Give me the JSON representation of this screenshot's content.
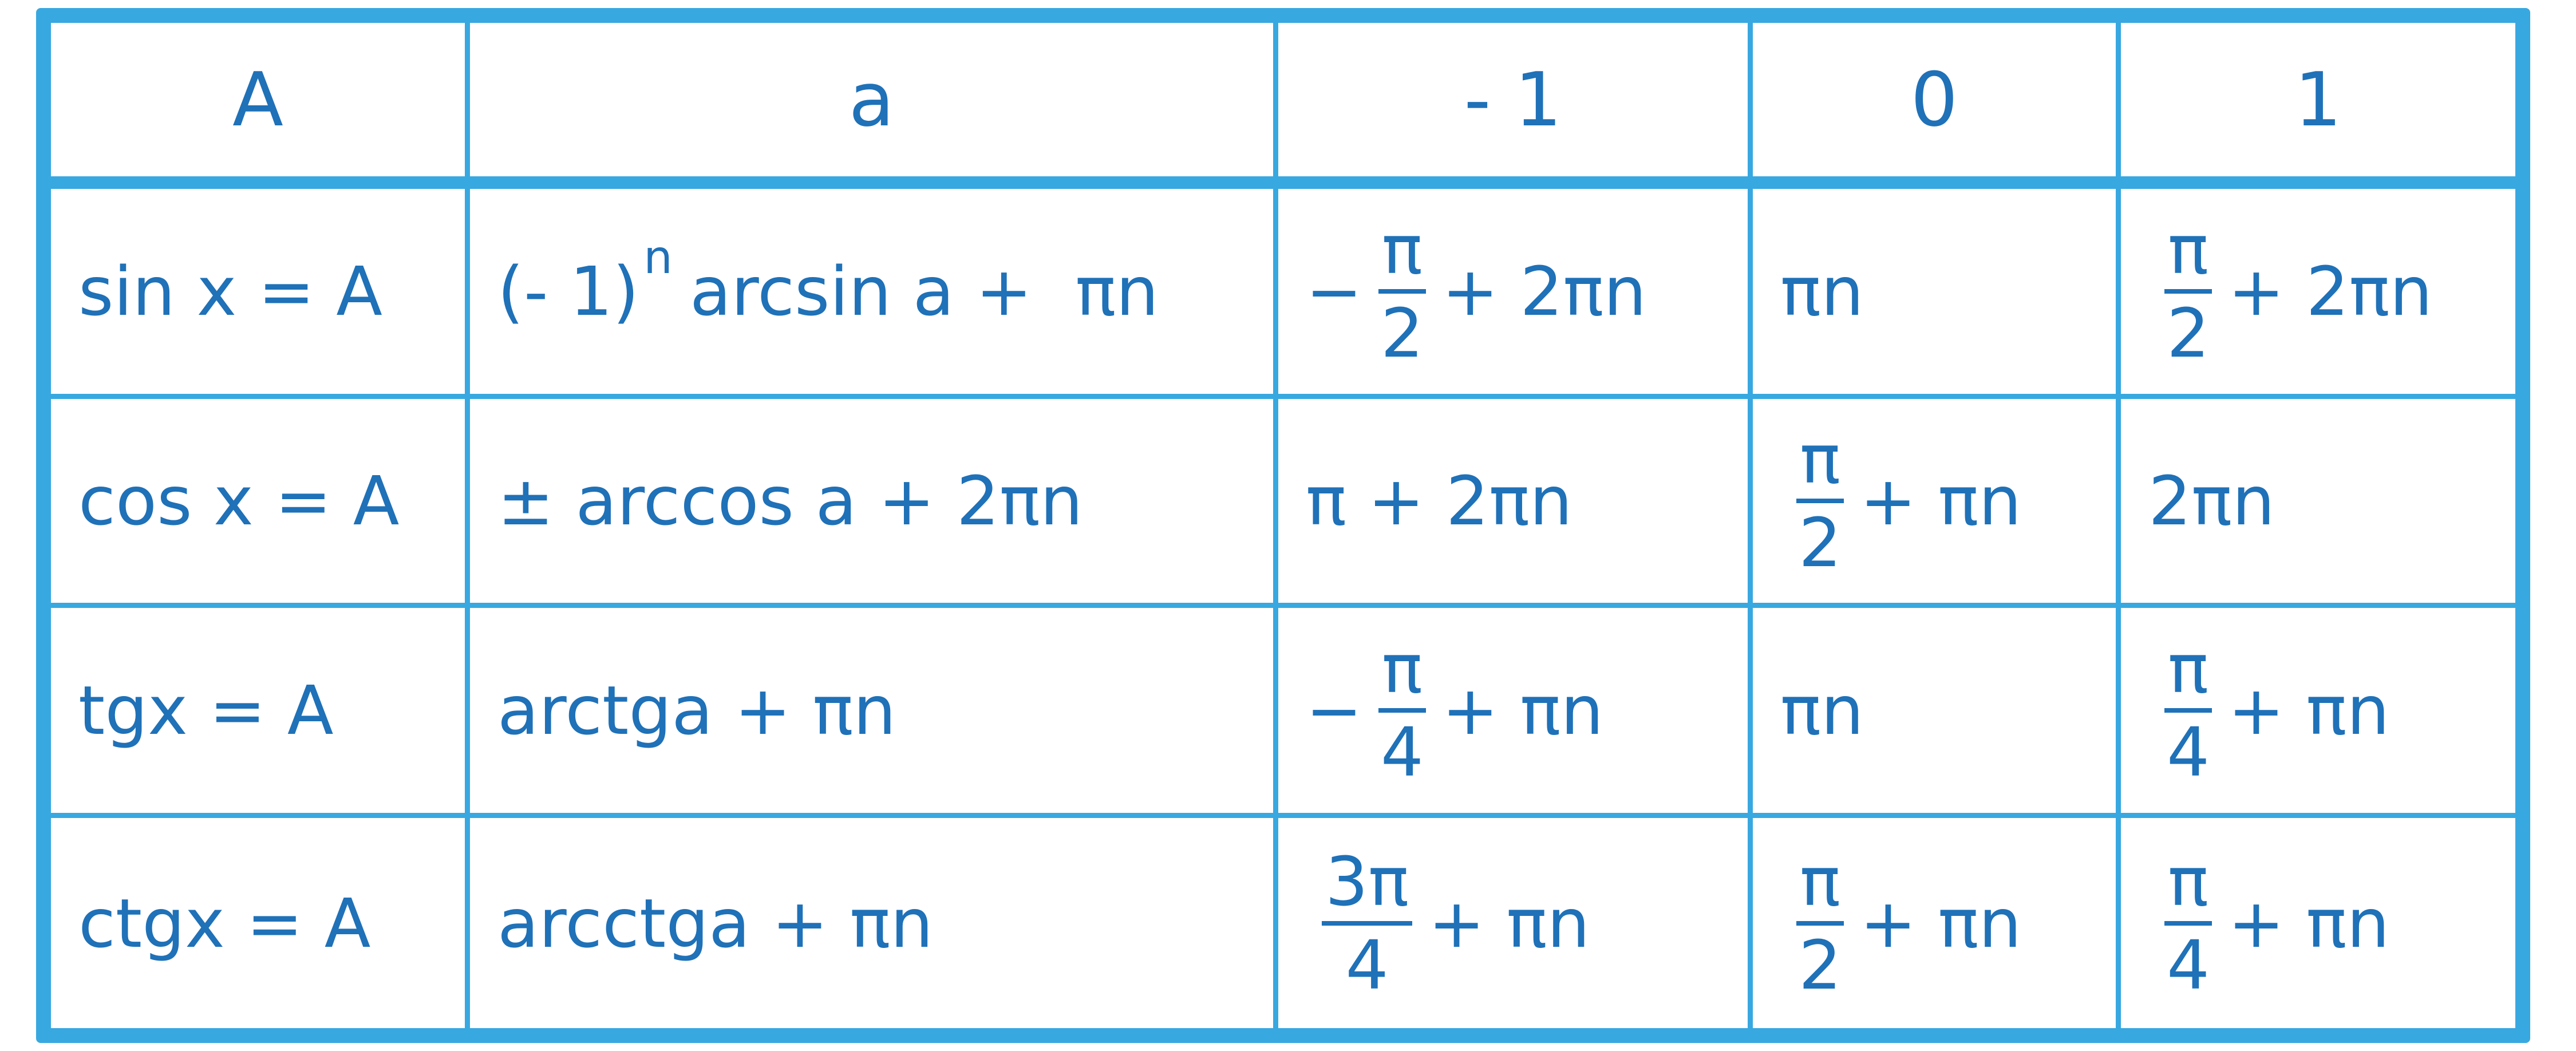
{
  "colors": {
    "border": "#38a8e0",
    "text": "#1f71b8"
  },
  "header": [
    "A",
    "a",
    "- 1",
    "0",
    "1"
  ],
  "rows": [
    {
      "label": "sin x = A",
      "general": {
        "pre": "(- 1)",
        "sup": "n",
        "post": "arcsin a +  πn"
      },
      "values": [
        {
          "pre": "−",
          "num": "π",
          "den": "2",
          "post": "+ 2πn"
        },
        {
          "pre": "πn"
        },
        {
          "num": "π",
          "den": "2",
          "post": "+ 2πn"
        }
      ]
    },
    {
      "label": "cos x = A",
      "general": {
        "pre": "± arccos a + 2πn"
      },
      "values": [
        {
          "pre": "π + 2πn"
        },
        {
          "num": "π",
          "den": "2",
          "post": "+ πn"
        },
        {
          "pre": "2πn"
        }
      ]
    },
    {
      "label": "tgx = A",
      "general": {
        "pre": "arctga + πn"
      },
      "values": [
        {
          "pre": "−",
          "num": "π",
          "den": "4",
          "post": "+ πn"
        },
        {
          "pre": "πn"
        },
        {
          "num": "π",
          "den": "4",
          "post": "+ πn"
        }
      ]
    },
    {
      "label": "ctgx = A",
      "general": {
        "pre": "arcctga + πn"
      },
      "values": [
        {
          "num": "3π",
          "den": "4",
          "post": "+ πn"
        },
        {
          "num": "π",
          "den": "2",
          "post": "+ πn"
        },
        {
          "num": "π",
          "den": "4",
          "post": "+ πn"
        }
      ]
    }
  ]
}
